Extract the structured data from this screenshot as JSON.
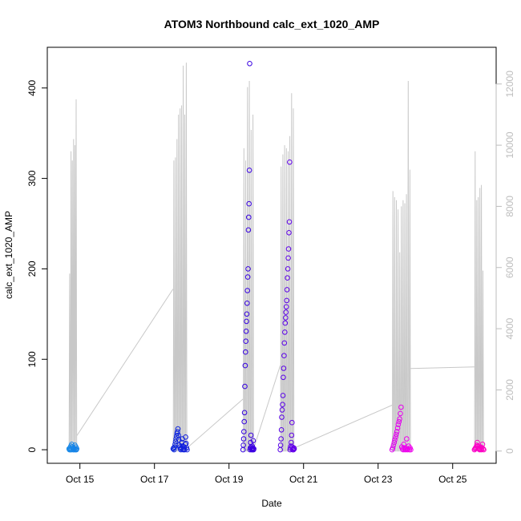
{
  "chart_data": {
    "type": "scatter",
    "title": "ATOM3 Northbound calc_ext_1020_AMP",
    "xlabel": "Date",
    "ylabel": "calc_ext_1020_AMP",
    "xlim": [
      "2023-10-14 03:00",
      "2023-10-26 04:00"
    ],
    "ylim": [
      -15,
      445
    ],
    "y2lim": [
      -400,
      13200
    ],
    "x_ticks": [
      {
        "label": "Oct 15",
        "date": "2023-10-15 00:00"
      },
      {
        "label": "Oct 17",
        "date": "2023-10-17 00:00"
      },
      {
        "label": "Oct 19",
        "date": "2023-10-19 00:00"
      },
      {
        "label": "Oct 21",
        "date": "2023-10-21 00:00"
      },
      {
        "label": "Oct 23",
        "date": "2023-10-23 00:00"
      },
      {
        "label": "Oct 25",
        "date": "2023-10-25 00:00"
      }
    ],
    "y_ticks": [
      0,
      100,
      200,
      300,
      400
    ],
    "y2_ticks": [
      0,
      2000,
      4000,
      6000,
      8000,
      10000,
      12000
    ],
    "grid": false,
    "legend": "none",
    "colors": {
      "line_series": "#c8c8c8",
      "point_gradient": [
        "#1fa0ec",
        "#0044dd",
        "#2200dd",
        "#7a00ee",
        "#ee00ee",
        "#ff00bb"
      ]
    },
    "series": [
      {
        "axis": "left",
        "kind": "points",
        "clusters": [
          {
            "start": "2023-10-14 17:00",
            "end": "2023-10-14 22:00",
            "max": 6,
            "values": [
              1,
              0,
              2,
              0,
              4,
              0,
              6,
              3,
              1,
              0,
              2,
              0,
              1,
              5,
              0,
              3,
              0,
              1
            ]
          },
          {
            "start": "2023-10-17 12:00",
            "end": "2023-10-17 21:00",
            "max": 23,
            "values": [
              1,
              2,
              0,
              3,
              6,
              9,
              12,
              15,
              18,
              20,
              23,
              16,
              11,
              5,
              3,
              1,
              0,
              2,
              8,
              12,
              4,
              0,
              1,
              3,
              0,
              6,
              14,
              7,
              2,
              0
            ]
          },
          {
            "start": "2023-10-19 09:00",
            "end": "2023-10-19 16:00",
            "max": 427,
            "values": [
              0,
              5,
              12,
              20,
              31,
              41,
              70,
              93,
              108,
              120,
              131,
              142,
              150,
              162,
              176,
              191,
              200,
              243,
              257,
              272,
              309,
              427,
              0,
              2,
              8,
              16,
              3,
              0,
              1,
              4,
              0,
              2,
              10,
              0,
              1
            ]
          },
          {
            "start": "2023-10-20 09:00",
            "end": "2023-10-20 18:00",
            "max": 318,
            "values": [
              0,
              5,
              12,
              22,
              36,
              44,
              50,
              60,
              80,
              90,
              104,
              118,
              130,
              140,
              146,
              152,
              158,
              165,
              177,
              190,
              200,
              212,
              222,
              240,
              252,
              318,
              0,
              2,
              4,
              8,
              16,
              30,
              3,
              0,
              1,
              0,
              2,
              1
            ]
          },
          {
            "start": "2023-10-23 09:00",
            "end": "2023-10-23 21:00",
            "max": 47,
            "values": [
              0,
              2,
              5,
              8,
              11,
              14,
              17,
              20,
              24,
              28,
              31,
              34,
              40,
              47,
              3,
              1,
              0,
              6,
              2,
              0,
              1,
              12,
              0,
              1,
              4,
              0,
              2,
              0
            ]
          },
          {
            "start": "2023-10-25 14:00",
            "end": "2023-10-25 20:00",
            "max": 8,
            "values": [
              0,
              1,
              2,
              3,
              5,
              8,
              4,
              2,
              1,
              0,
              1,
              3,
              0,
              2,
              6,
              1,
              0
            ]
          }
        ]
      },
      {
        "axis": "right",
        "kind": "line",
        "segments": [
          {
            "start": "2023-10-14 17:00",
            "end": "2023-10-14 22:00",
            "peaks": [
              5800,
              9800,
              9500,
              10200,
              10000,
              11500
            ]
          },
          {
            "start": "2023-10-17 12:00",
            "end": "2023-10-17 21:00",
            "peaks": [
              9500,
              9600,
              10200,
              11000,
              11200,
              11300,
              12600,
              11000,
              12700
            ]
          },
          {
            "start": "2023-10-19 09:00",
            "end": "2023-10-19 16:00",
            "peaks": [
              9900,
              9500,
              11900,
              12100,
              10500,
              11000
            ]
          },
          {
            "start": "2023-10-20 09:00",
            "end": "2023-10-20 18:00",
            "peaks": [
              9300,
              9700,
              10000,
              9900,
              9800,
              10300,
              11700,
              11200
            ]
          },
          {
            "start": "2023-10-23 09:00",
            "end": "2023-10-23 21:00",
            "peaks": [
              8500,
              8300,
              8200,
              7900,
              6500,
              8000,
              8200,
              8100,
              8400,
              12100,
              9200
            ]
          },
          {
            "start": "2023-10-25 14:00",
            "end": "2023-10-25 20:00",
            "peaks": [
              9800,
              8200,
              8300,
              8600,
              8700,
              5900
            ]
          }
        ],
        "connectors": [
          {
            "from": {
              "date": "2023-10-14 22:00",
              "value": 500
            },
            "to": {
              "date": "2023-10-17 12:00",
              "value": 5300
            }
          },
          {
            "from": {
              "date": "2023-10-17 21:00",
              "value": 100
            },
            "to": {
              "date": "2023-10-19 09:00",
              "value": 1700
            }
          },
          {
            "from": {
              "date": "2023-10-19 16:00",
              "value": 100
            },
            "to": {
              "date": "2023-10-20 09:00",
              "value": 2800
            }
          },
          {
            "from": {
              "date": "2023-10-20 18:00",
              "value": 100
            },
            "to": {
              "date": "2023-10-23 09:00",
              "value": 1500
            }
          },
          {
            "from": {
              "date": "2023-10-23 21:00",
              "value": 2700
            },
            "to": {
              "date": "2023-10-25 14:00",
              "value": 2750
            }
          }
        ]
      }
    ]
  }
}
